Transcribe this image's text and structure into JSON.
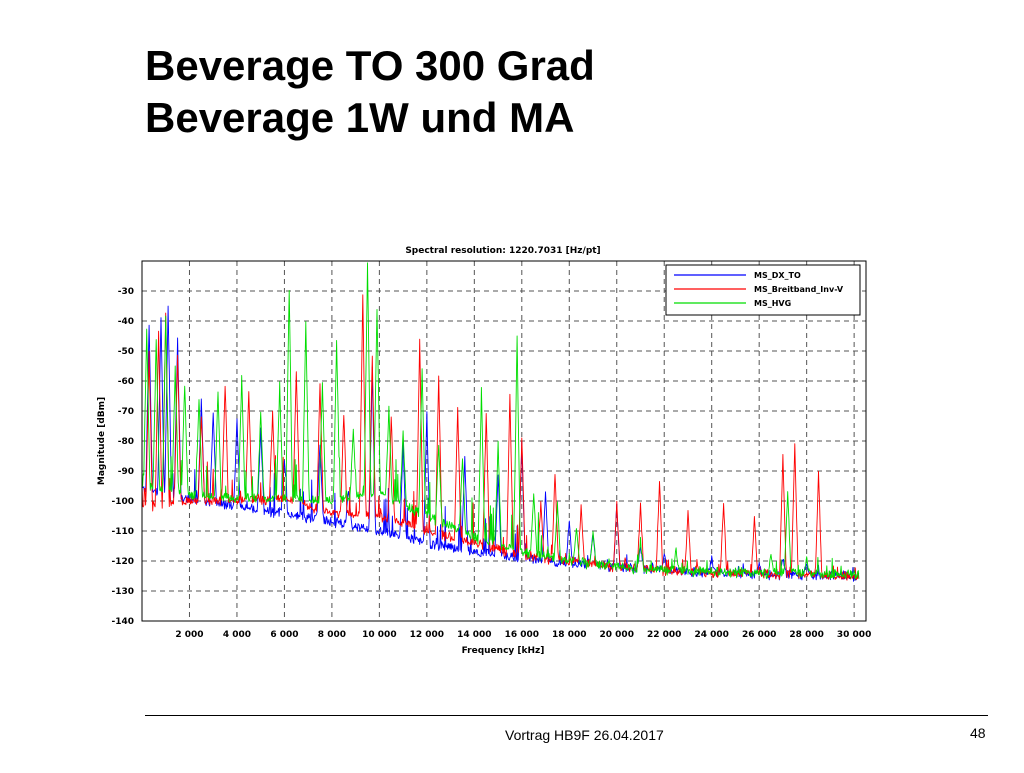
{
  "slide": {
    "title_line1": "Beverage TO 300 Grad",
    "title_line2": "Beverage 1W und MA",
    "footer": "Vortrag HB9F 26.04.2017",
    "page_number": "48"
  },
  "chart_data": {
    "type": "line",
    "title": "Spectral resolution:  1220.7031  [Hz/pt]",
    "xlabel": "Frequency [kHz]",
    "ylabel": "Magnitude [dBm]",
    "xlim": [
      0,
      30500
    ],
    "ylim": [
      -140,
      -20
    ],
    "xticks": [
      2000,
      4000,
      6000,
      8000,
      10000,
      12000,
      14000,
      16000,
      18000,
      20000,
      22000,
      24000,
      26000,
      28000,
      30000
    ],
    "xtick_labels": [
      "2 000",
      "4 000",
      "6 000",
      "8 000",
      "10 000",
      "12 000",
      "14 000",
      "16 000",
      "18 000",
      "20 000",
      "22 000",
      "24 000",
      "26 000",
      "28 000",
      "30 000"
    ],
    "yticks": [
      -30,
      -40,
      -50,
      -60,
      -70,
      -80,
      -90,
      -100,
      -110,
      -120,
      -130,
      -140
    ],
    "ytick_labels": [
      "-30",
      "-40",
      "-50",
      "-60",
      "-70",
      "-80",
      "-90",
      "-100",
      "-110",
      "-120",
      "-130",
      "-140"
    ],
    "grid": true,
    "legend_position": "top-right",
    "series": [
      {
        "name": "MS_DX_TO",
        "color": "#0000ff",
        "baseline": [
          [
            0,
            -96
          ],
          [
            2000,
            -99
          ],
          [
            4000,
            -102
          ],
          [
            6000,
            -104
          ],
          [
            8000,
            -107
          ],
          [
            10000,
            -110
          ],
          [
            12000,
            -114
          ],
          [
            14000,
            -117
          ],
          [
            16000,
            -119
          ],
          [
            18000,
            -121
          ],
          [
            20000,
            -122
          ],
          [
            22000,
            -123
          ],
          [
            24000,
            -124
          ],
          [
            26000,
            -124.5
          ],
          [
            28000,
            -124.5
          ],
          [
            30000,
            -125
          ]
        ],
        "peaks": [
          [
            300,
            -40
          ],
          [
            800,
            -38
          ],
          [
            1100,
            -34
          ],
          [
            1500,
            -45
          ],
          [
            2500,
            -65
          ],
          [
            3000,
            -70
          ],
          [
            4000,
            -72
          ],
          [
            5000,
            -75
          ],
          [
            6000,
            -85
          ],
          [
            7500,
            -80
          ],
          [
            8700,
            -95
          ],
          [
            9700,
            -55
          ],
          [
            11000,
            -80
          ],
          [
            12000,
            -70
          ],
          [
            13600,
            -85
          ],
          [
            15000,
            -90
          ],
          [
            16000,
            -80
          ],
          [
            17000,
            -96
          ],
          [
            18000,
            -105
          ],
          [
            19000,
            -110
          ],
          [
            20000,
            -100
          ],
          [
            21000,
            -114
          ],
          [
            22000,
            -117
          ],
          [
            24000,
            -118
          ],
          [
            26000,
            -119
          ],
          [
            27000,
            -118
          ],
          [
            28000,
            -120
          ]
        ]
      },
      {
        "name": "MS_Breitband_Inv-V",
        "color": "#ff0000",
        "baseline": [
          [
            0,
            -102
          ],
          [
            2000,
            -100
          ],
          [
            4000,
            -100
          ],
          [
            6000,
            -99
          ],
          [
            8000,
            -104
          ],
          [
            10000,
            -105
          ],
          [
            12000,
            -110
          ],
          [
            14000,
            -114
          ],
          [
            16000,
            -118
          ],
          [
            18000,
            -120
          ],
          [
            20000,
            -122
          ],
          [
            22000,
            -123
          ],
          [
            24000,
            -124
          ],
          [
            26000,
            -124
          ],
          [
            28000,
            -124.5
          ],
          [
            30000,
            -125
          ]
        ],
        "peaks": [
          [
            300,
            -50
          ],
          [
            700,
            -42
          ],
          [
            1000,
            -36
          ],
          [
            1500,
            -50
          ],
          [
            2500,
            -70
          ],
          [
            3500,
            -60
          ],
          [
            4500,
            -62
          ],
          [
            5500,
            -70
          ],
          [
            6500,
            -55
          ],
          [
            7500,
            -60
          ],
          [
            8500,
            -70
          ],
          [
            9300,
            -30
          ],
          [
            9700,
            -50
          ],
          [
            10500,
            -70
          ],
          [
            11700,
            -45
          ],
          [
            12500,
            -58
          ],
          [
            13300,
            -68
          ],
          [
            14500,
            -70
          ],
          [
            15500,
            -64
          ],
          [
            16000,
            -78
          ],
          [
            16800,
            -100
          ],
          [
            17400,
            -90
          ],
          [
            18500,
            -100
          ],
          [
            20000,
            -100
          ],
          [
            21000,
            -100
          ],
          [
            21800,
            -92
          ],
          [
            23000,
            -103
          ],
          [
            24500,
            -100
          ],
          [
            25800,
            -105
          ],
          [
            27000,
            -83
          ],
          [
            27500,
            -80
          ],
          [
            28500,
            -90
          ]
        ]
      },
      {
        "name": "MS_HVG",
        "color": "#00dd00",
        "baseline": [
          [
            0,
            -95
          ],
          [
            2000,
            -98
          ],
          [
            4000,
            -99
          ],
          [
            6000,
            -99
          ],
          [
            8000,
            -100
          ],
          [
            10000,
            -97
          ],
          [
            12000,
            -105
          ],
          [
            14000,
            -112
          ],
          [
            16000,
            -117
          ],
          [
            18000,
            -120
          ],
          [
            20000,
            -122
          ],
          [
            22000,
            -123
          ],
          [
            24000,
            -123.5
          ],
          [
            26000,
            -124
          ],
          [
            28000,
            -124
          ],
          [
            30000,
            -124.5
          ]
        ],
        "peaks": [
          [
            200,
            -42
          ],
          [
            600,
            -45
          ],
          [
            1000,
            -38
          ],
          [
            1400,
            -55
          ],
          [
            1800,
            -60
          ],
          [
            2400,
            -65
          ],
          [
            3200,
            -62
          ],
          [
            4200,
            -58
          ],
          [
            5000,
            -70
          ],
          [
            5800,
            -60
          ],
          [
            6200,
            -28
          ],
          [
            6900,
            -40
          ],
          [
            7600,
            -60
          ],
          [
            8200,
            -45
          ],
          [
            8900,
            -75
          ],
          [
            9500,
            -20
          ],
          [
            9900,
            -35
          ],
          [
            10400,
            -68
          ],
          [
            11000,
            -76
          ],
          [
            11800,
            -55
          ],
          [
            12500,
            -80
          ],
          [
            13500,
            -85
          ],
          [
            14300,
            -62
          ],
          [
            15000,
            -80
          ],
          [
            15800,
            -44
          ],
          [
            16500,
            -96
          ],
          [
            17500,
            -100
          ],
          [
            18300,
            -108
          ],
          [
            19000,
            -110
          ],
          [
            21000,
            -112
          ],
          [
            22500,
            -115
          ],
          [
            26500,
            -117
          ],
          [
            27200,
            -95
          ],
          [
            28000,
            -118
          ]
        ]
      }
    ]
  }
}
